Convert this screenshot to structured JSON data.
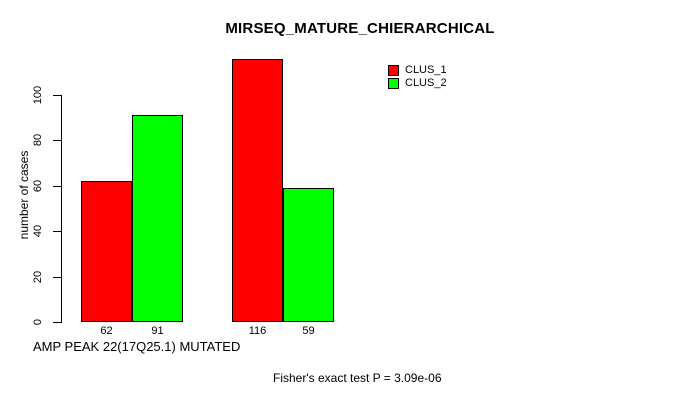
{
  "chart_data": {
    "type": "bar",
    "title": "MIRSEQ_MATURE_CHIERARCHICAL",
    "ylabel": "number of cases",
    "xlabel": "AMP PEAK 22(17Q25.1) MUTATED",
    "footnote": "Fisher's exact test P = 3.09e-06",
    "yticks": [
      0,
      20,
      40,
      60,
      80,
      100
    ],
    "axis_max": 100,
    "grid": "off",
    "legend_position": "top-right",
    "categories": [
      "",
      ""
    ],
    "series": [
      {
        "name": "CLUS_1",
        "color": "#ff0000",
        "values": [
          62,
          116
        ]
      },
      {
        "name": "CLUS_2",
        "color": "#00ff00",
        "values": [
          91,
          59
        ]
      }
    ],
    "bar_value_labels": [
      "62",
      "91",
      "116",
      "59"
    ],
    "colors": {
      "background": "#ffffff",
      "axis": "#000000",
      "text": "#000000"
    }
  }
}
